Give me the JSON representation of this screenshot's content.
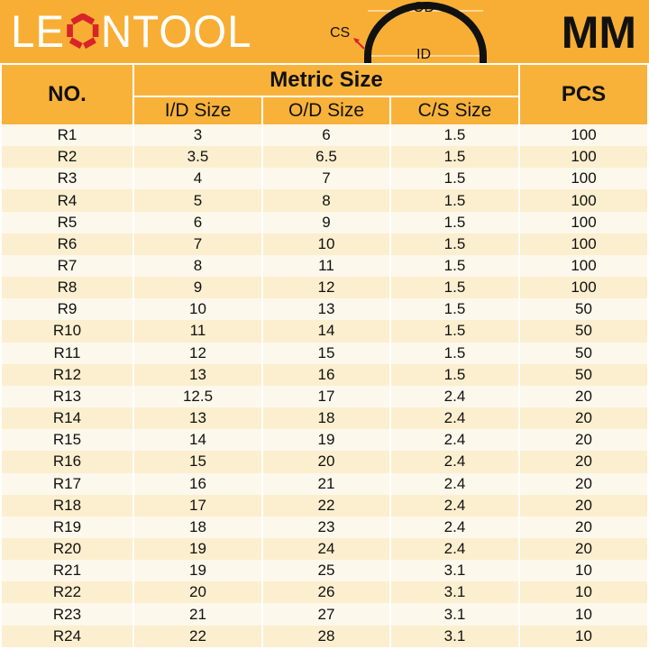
{
  "brand": {
    "logo_text": "LEONTOOL",
    "unit": "MM"
  },
  "diagram": {
    "labels": {
      "od": "OD",
      "id": "ID",
      "cs": "CS"
    }
  },
  "colors": {
    "header": "#f8b23a",
    "row_light": "#fdf8ec",
    "row_alt": "#fcefcf",
    "logo_accent": "#d9232a"
  },
  "table": {
    "headers": {
      "no": "NO.",
      "metric": "Metric Size",
      "pcs": "PCS",
      "id": "I/D Size",
      "od": "O/D Size",
      "cs": "C/S Size"
    },
    "rows": [
      [
        "R1",
        "3",
        "6",
        "1.5",
        "100"
      ],
      [
        "R2",
        "3.5",
        "6.5",
        "1.5",
        "100"
      ],
      [
        "R3",
        "4",
        "7",
        "1.5",
        "100"
      ],
      [
        "R4",
        "5",
        "8",
        "1.5",
        "100"
      ],
      [
        "R5",
        "6",
        "9",
        "1.5",
        "100"
      ],
      [
        "R6",
        "7",
        "10",
        "1.5",
        "100"
      ],
      [
        "R7",
        "8",
        "11",
        "1.5",
        "100"
      ],
      [
        "R8",
        "9",
        "12",
        "1.5",
        "100"
      ],
      [
        "R9",
        "10",
        "13",
        "1.5",
        "50"
      ],
      [
        "R10",
        "11",
        "14",
        "1.5",
        "50"
      ],
      [
        "R11",
        "12",
        "15",
        "1.5",
        "50"
      ],
      [
        "R12",
        "13",
        "16",
        "1.5",
        "50"
      ],
      [
        "R13",
        "12.5",
        "17",
        "2.4",
        "20"
      ],
      [
        "R14",
        "13",
        "18",
        "2.4",
        "20"
      ],
      [
        "R15",
        "14",
        "19",
        "2.4",
        "20"
      ],
      [
        "R16",
        "15",
        "20",
        "2.4",
        "20"
      ],
      [
        "R17",
        "16",
        "21",
        "2.4",
        "20"
      ],
      [
        "R18",
        "17",
        "22",
        "2.4",
        "20"
      ],
      [
        "R19",
        "18",
        "23",
        "2.4",
        "20"
      ],
      [
        "R20",
        "19",
        "24",
        "2.4",
        "20"
      ],
      [
        "R21",
        "19",
        "25",
        "3.1",
        "10"
      ],
      [
        "R22",
        "20",
        "26",
        "3.1",
        "10"
      ],
      [
        "R23",
        "21",
        "27",
        "3.1",
        "10"
      ],
      [
        "R24",
        "22",
        "28",
        "3.1",
        "10"
      ]
    ]
  }
}
